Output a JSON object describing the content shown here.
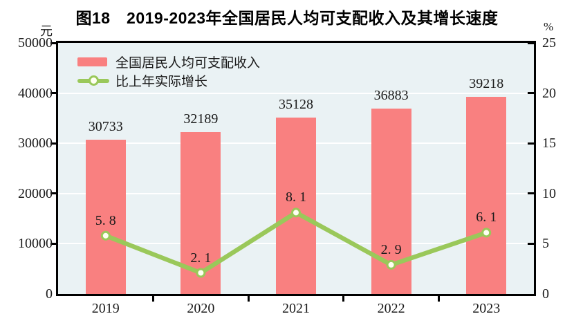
{
  "title": "图18　2019-2023年全国居民人均可支配收入及其增长速度",
  "left_axis_unit": "元",
  "right_axis_unit": "%",
  "legend": {
    "bar_label": "全国居民人均可支配收入",
    "line_label": "比上年实际增长"
  },
  "colors": {
    "bar": "#F98080",
    "line": "#9AC85A",
    "marker_fill": "#FFFFF2",
    "plot_bg": "#EAF2F4",
    "grid": "#FFFFFF",
    "axis": "#000000",
    "text": "#1A1A1A"
  },
  "chart_data": {
    "type": "combo",
    "title": "图18　2019-2023年全国居民人均可支配收入及其增长速度",
    "categories": [
      "2019",
      "2020",
      "2021",
      "2022",
      "2023"
    ],
    "series": [
      {
        "name": "全国居民人均可支配收入",
        "type": "bar",
        "axis": "left",
        "unit": "元",
        "values": [
          30733,
          32189,
          35128,
          36883,
          39218
        ],
        "labels": [
          "30733",
          "32189",
          "35128",
          "36883",
          "39218"
        ]
      },
      {
        "name": "比上年实际增长",
        "type": "line",
        "axis": "right",
        "unit": "%",
        "values": [
          5.8,
          2.1,
          8.1,
          2.9,
          6.1
        ],
        "labels": [
          "5. 8",
          "2. 1",
          "8. 1",
          "2. 9",
          "6. 1"
        ]
      }
    ],
    "left_axis": {
      "label": "元",
      "ticks": [
        0,
        10000,
        20000,
        30000,
        40000,
        50000
      ],
      "range": [
        0,
        50000
      ]
    },
    "right_axis": {
      "label": "%",
      "ticks": [
        0,
        5,
        10,
        15,
        20,
        25
      ],
      "range": [
        0,
        25
      ]
    },
    "grid": true,
    "gridlines": "horizontal-white",
    "legend_position": "top-left-inside",
    "plot_background": "light-azure"
  }
}
